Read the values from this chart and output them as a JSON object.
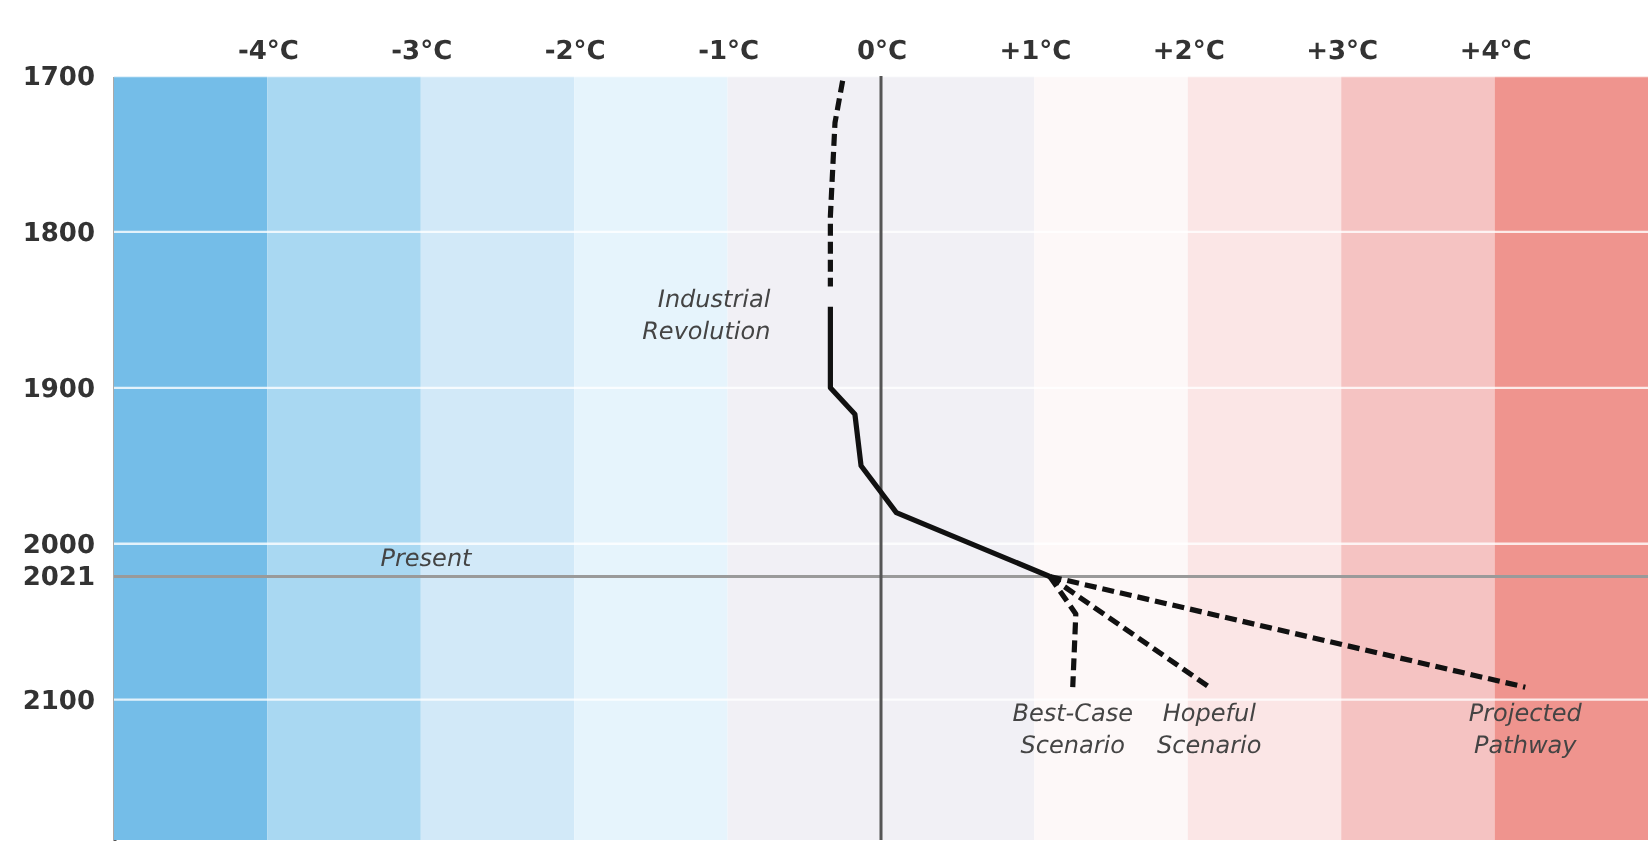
{
  "chart_data": {
    "type": "line",
    "xlim": [
      -5,
      5
    ],
    "xticks": [
      {
        "value": -4,
        "label": "-4°C"
      },
      {
        "value": -3,
        "label": "-3°C"
      },
      {
        "value": -2,
        "label": "-2°C"
      },
      {
        "value": -1,
        "label": "-1°C"
      },
      {
        "value": 0,
        "label": "0°C"
      },
      {
        "value": 1,
        "label": "+1°C"
      },
      {
        "value": 2,
        "label": "+2°C"
      },
      {
        "value": 3,
        "label": "+3°C"
      },
      {
        "value": 4,
        "label": "+4°C"
      }
    ],
    "ylim": [
      2190,
      1700
    ],
    "yticks": [
      1700,
      1800,
      1900,
      2000,
      2021,
      2100
    ],
    "grid": "y",
    "series": [
      {
        "color": "#111111",
        "line_style": "dashed",
        "x": [
          -0.25,
          -0.3,
          -0.33,
          -0.33
        ],
        "values": [
          1703,
          1730,
          1790,
          1835
        ]
      },
      {
        "color": "#111111",
        "line_style": "solid",
        "x": [
          -0.33,
          -0.33,
          -0.17,
          -0.13,
          0.1,
          1.1
        ],
        "values": [
          1848,
          1900,
          1917,
          1950,
          1980,
          2021
        ]
      },
      {
        "color": "#111111",
        "line_style": "dashed",
        "x": [
          1.1,
          1.27,
          1.25
        ],
        "values": [
          2021,
          2045,
          2092
        ]
      },
      {
        "color": "#111111",
        "line_style": "dashed",
        "x": [
          1.1,
          2.14
        ],
        "values": [
          2021,
          2092
        ]
      },
      {
        "color": "#111111",
        "line_style": "dashed",
        "x": [
          1.1,
          4.2
        ],
        "values": [
          2021,
          2092
        ]
      }
    ],
    "bands": [
      {
        "axis": "x",
        "from": -5,
        "to": -4,
        "color": "#74bde8"
      },
      {
        "axis": "x",
        "from": -4,
        "to": -3,
        "color": "#a9d8f2"
      },
      {
        "axis": "x",
        "from": -3,
        "to": -2,
        "color": "#d2e9f8"
      },
      {
        "axis": "x",
        "from": -2,
        "to": -1,
        "color": "#e6f4fc"
      },
      {
        "axis": "x",
        "from": -1,
        "to": 0,
        "color": "#f1f0f5"
      },
      {
        "axis": "x",
        "from": 0,
        "to": 1,
        "color": "#f1f0f5"
      },
      {
        "axis": "x",
        "from": 1,
        "to": 2,
        "color": "#fdf8f8"
      },
      {
        "axis": "x",
        "from": 2,
        "to": 3,
        "color": "#fbe6e6"
      },
      {
        "axis": "x",
        "from": 3,
        "to": 4,
        "color": "#f5c3c2"
      },
      {
        "axis": "x",
        "from": 4,
        "to": 5,
        "color": "#ef948e"
      }
    ],
    "ref_lines": [
      {
        "axis": "y",
        "value": 2021,
        "label": "Present",
        "color": "#9a9a9a"
      },
      {
        "axis": "x",
        "value": 0,
        "color": "#555555"
      }
    ],
    "annotations": [
      {
        "text": "Industrial Revolution",
        "x": -0.33,
        "y": 1848
      },
      {
        "text": "Best-Case Scenario",
        "x": 1.25,
        "y": 2092
      },
      {
        "text": "Hopeful Scenario",
        "x": 2.14,
        "y": 2092
      },
      {
        "text": "Projected Pathway",
        "x": 4.2,
        "y": 2092
      }
    ]
  }
}
